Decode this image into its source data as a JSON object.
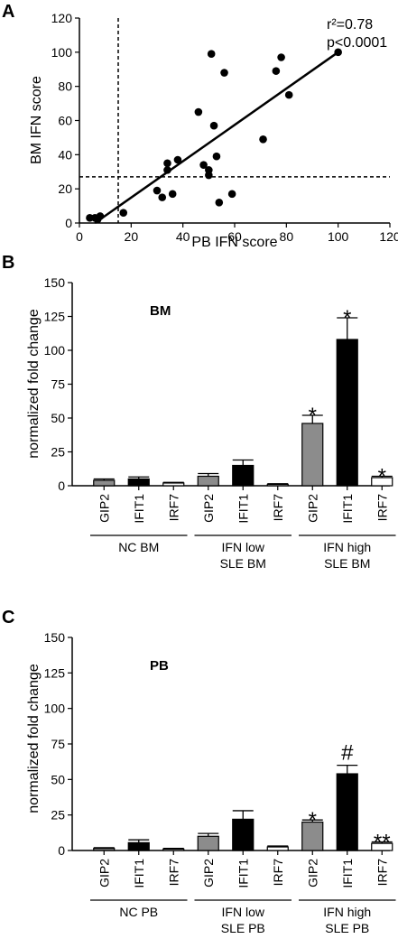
{
  "chart_data": [
    {
      "type": "scatter",
      "panel_label": "A",
      "xlabel": "PB IFN score",
      "ylabel": "BM IFN score",
      "xlim": [
        0,
        120
      ],
      "ylim": [
        0,
        120
      ],
      "xticks": [
        0,
        20,
        40,
        60,
        80,
        100,
        120
      ],
      "yticks": [
        0,
        20,
        40,
        60,
        80,
        100,
        120
      ],
      "annotation_r2": "r²=0.78",
      "annotation_p": "p<0.0001",
      "points": [
        {
          "x": 4,
          "y": 3
        },
        {
          "x": 6,
          "y": 3
        },
        {
          "x": 7,
          "y": 2
        },
        {
          "x": 8,
          "y": 4
        },
        {
          "x": 17,
          "y": 6
        },
        {
          "x": 30,
          "y": 19
        },
        {
          "x": 32,
          "y": 15
        },
        {
          "x": 34,
          "y": 35
        },
        {
          "x": 34,
          "y": 31
        },
        {
          "x": 36,
          "y": 17
        },
        {
          "x": 38,
          "y": 37
        },
        {
          "x": 46,
          "y": 65
        },
        {
          "x": 48,
          "y": 34
        },
        {
          "x": 50,
          "y": 31
        },
        {
          "x": 50,
          "y": 28
        },
        {
          "x": 51,
          "y": 99
        },
        {
          "x": 52,
          "y": 57
        },
        {
          "x": 53,
          "y": 39
        },
        {
          "x": 54,
          "y": 12
        },
        {
          "x": 56,
          "y": 88
        },
        {
          "x": 59,
          "y": 17
        },
        {
          "x": 71,
          "y": 49
        },
        {
          "x": 76,
          "y": 89
        },
        {
          "x": 78,
          "y": 97
        },
        {
          "x": 81,
          "y": 75
        },
        {
          "x": 100,
          "y": 100
        }
      ],
      "fit_line": {
        "x": [
          6,
          100
        ],
        "y": [
          0,
          100
        ]
      },
      "threshold_x": 15,
      "threshold_y": 27
    },
    {
      "type": "bar",
      "panel_label": "B",
      "title": "BM",
      "ylabel": "normalized fold change",
      "ylim": [
        0,
        150
      ],
      "yticks": [
        0,
        25,
        50,
        75,
        100,
        125,
        150
      ],
      "categories": [
        "GIP2",
        "IFIT1",
        "IRF7",
        "GIP2",
        "IFIT1",
        "IRF7",
        "GIP2",
        "IFIT1",
        "IRF7"
      ],
      "values": [
        4,
        5,
        2,
        7,
        15,
        1,
        46,
        108,
        6
      ],
      "errors": [
        1,
        1.5,
        0.5,
        2,
        4,
        0.5,
        6,
        16,
        1
      ],
      "colors": [
        "#8c8c8c",
        "#000000",
        "#ffffff",
        "#8c8c8c",
        "#000000",
        "#ffffff",
        "#8c8c8c",
        "#000000",
        "#ffffff"
      ],
      "significance": [
        "",
        "",
        "",
        "",
        "",
        "",
        "*",
        "*",
        "*"
      ],
      "groups": [
        {
          "line1": "NC BM",
          "line2": ""
        },
        {
          "line1": "IFN low",
          "line2": "SLE BM"
        },
        {
          "line1": "IFN high",
          "line2": "SLE BM"
        }
      ]
    },
    {
      "type": "bar",
      "panel_label": "C",
      "title": "PB",
      "ylabel": "normalized fold change",
      "ylim": [
        0,
        150
      ],
      "yticks": [
        0,
        25,
        50,
        75,
        100,
        125,
        150
      ],
      "categories": [
        "GIP2",
        "IFIT1",
        "IRF7",
        "GIP2",
        "IFIT1",
        "IRF7",
        "GIP2",
        "IFIT1",
        "IRF7"
      ],
      "values": [
        1.5,
        5.5,
        1,
        10,
        22,
        2.5,
        20,
        54,
        5
      ],
      "errors": [
        0.5,
        2,
        0.5,
        2,
        6,
        0.7,
        1.5,
        6,
        1
      ],
      "colors": [
        "#8c8c8c",
        "#000000",
        "#ffffff",
        "#8c8c8c",
        "#000000",
        "#ffffff",
        "#8c8c8c",
        "#000000",
        "#ffffff"
      ],
      "significance": [
        "",
        "",
        "",
        "",
        "",
        "",
        "*",
        "#",
        "**"
      ],
      "groups": [
        {
          "line1": "NC PB",
          "line2": ""
        },
        {
          "line1": "IFN low",
          "line2": "SLE PB"
        },
        {
          "line1": "IFN high",
          "line2": "SLE PB"
        }
      ]
    }
  ]
}
